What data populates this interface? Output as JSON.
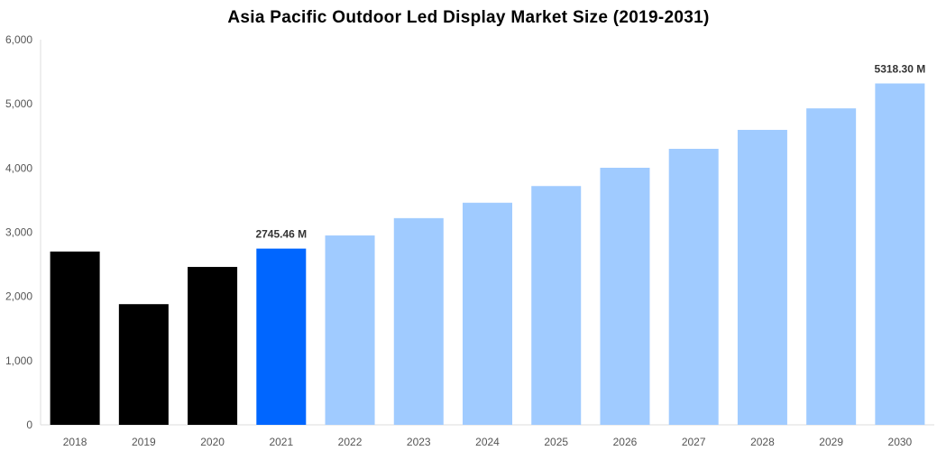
{
  "chart_data": {
    "type": "bar",
    "title": "Asia Pacific Outdoor Led Display Market Size (2019-2031)",
    "xlabel": "",
    "ylabel": "",
    "ylim": [
      0,
      6000
    ],
    "yticks": [
      0,
      1000,
      2000,
      3000,
      4000,
      5000,
      6000
    ],
    "ytick_labels": [
      "0",
      "1,000",
      "2,000",
      "3,000",
      "4,000",
      "5,000",
      "6,000"
    ],
    "grid": false,
    "categories": [
      "2018",
      "2019",
      "2020",
      "2021",
      "2022",
      "2023",
      "2024",
      "2025",
      "2026",
      "2027",
      "2028",
      "2029",
      "2030"
    ],
    "values": [
      2700,
      1880,
      2460,
      2745.46,
      2950,
      3220,
      3460,
      3720,
      4005,
      4300,
      4595,
      4930,
      5318.3
    ],
    "bar_colors": [
      "#000000",
      "#000000",
      "#000000",
      "#0066ff",
      "#a0cbff",
      "#a0cbff",
      "#a0cbff",
      "#a0cbff",
      "#a0cbff",
      "#a0cbff",
      "#a0cbff",
      "#a0cbff",
      "#a0cbff"
    ],
    "data_labels": {
      "2021": "2745.46 M",
      "2030": "5318.30 M"
    }
  }
}
